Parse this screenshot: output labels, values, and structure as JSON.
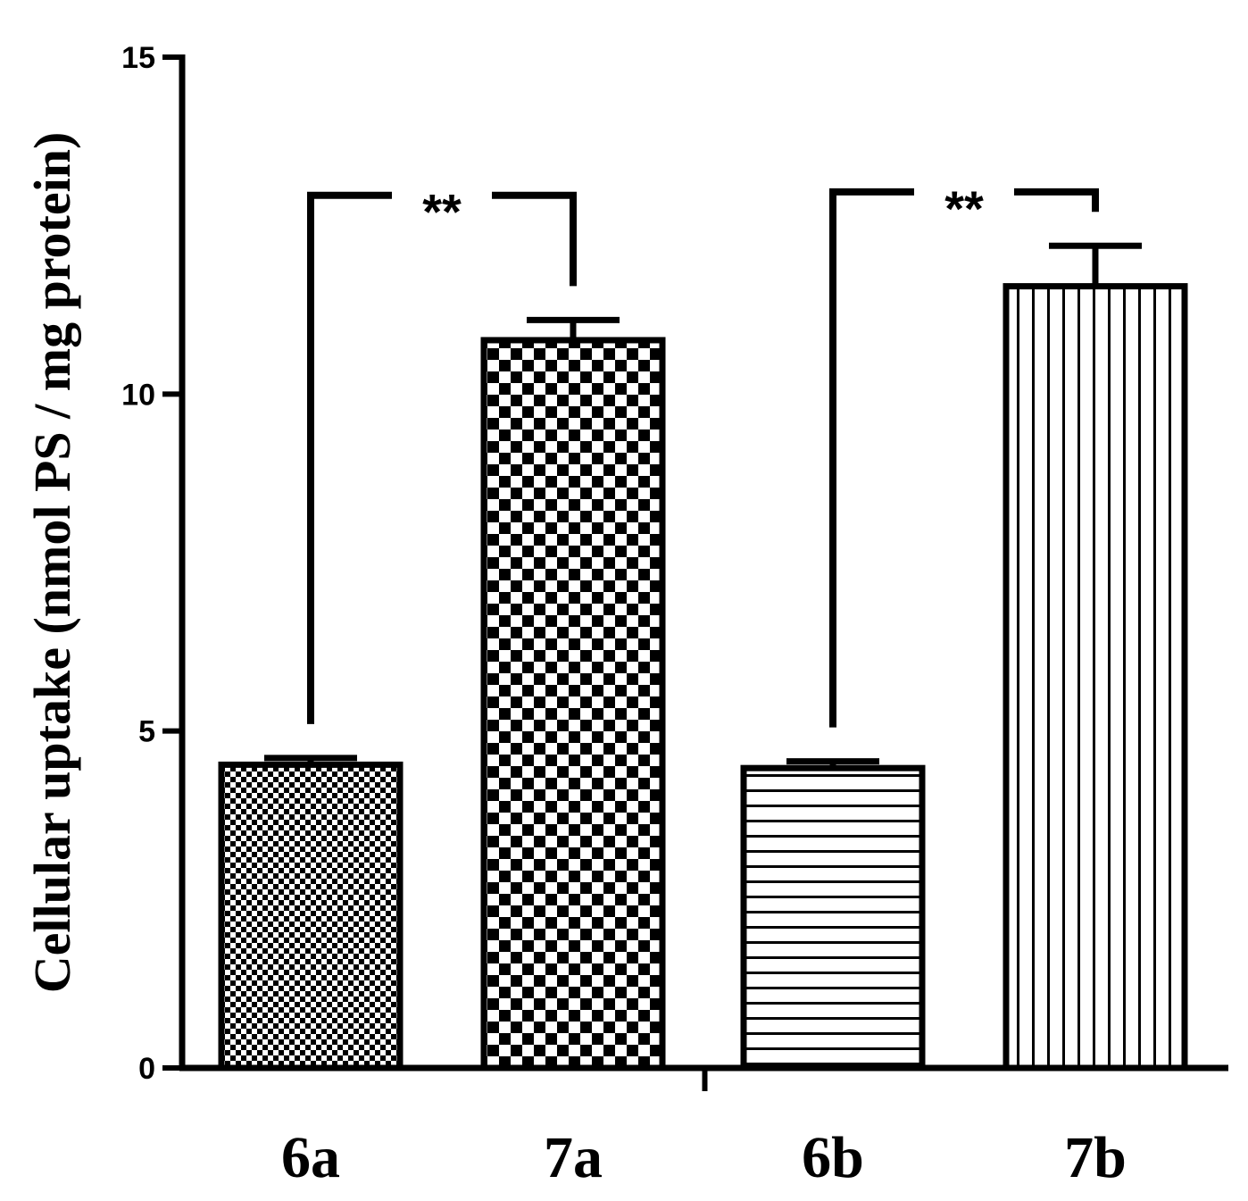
{
  "chart_data": {
    "type": "bar",
    "title": "",
    "xlabel": "",
    "ylabel": "Cellular uptake (nmol PS / mg protein)",
    "ylim": [
      0,
      15
    ],
    "yticks": [
      0,
      5,
      10,
      15
    ],
    "ytick_labels": [
      "0",
      "5",
      "10",
      "15"
    ],
    "categories": [
      "6a",
      "7a",
      "6b",
      "7b"
    ],
    "values": [
      4.5,
      10.8,
      4.45,
      11.6
    ],
    "errors": [
      0.1,
      0.3,
      0.1,
      0.6
    ],
    "patterns": [
      "fine-checker",
      "coarse-checker",
      "horizontal-lines",
      "vertical-lines"
    ],
    "grid": false,
    "legend": "none",
    "significance": [
      {
        "from": "6a",
        "to": "7a",
        "label": "**",
        "y": 12.95
      },
      {
        "from": "6b",
        "to": "7b",
        "label": "**",
        "y": 13.0
      }
    ],
    "colors": {
      "bar_fill": "#ffffff",
      "pattern": "#000000",
      "axis": "#000000"
    }
  }
}
